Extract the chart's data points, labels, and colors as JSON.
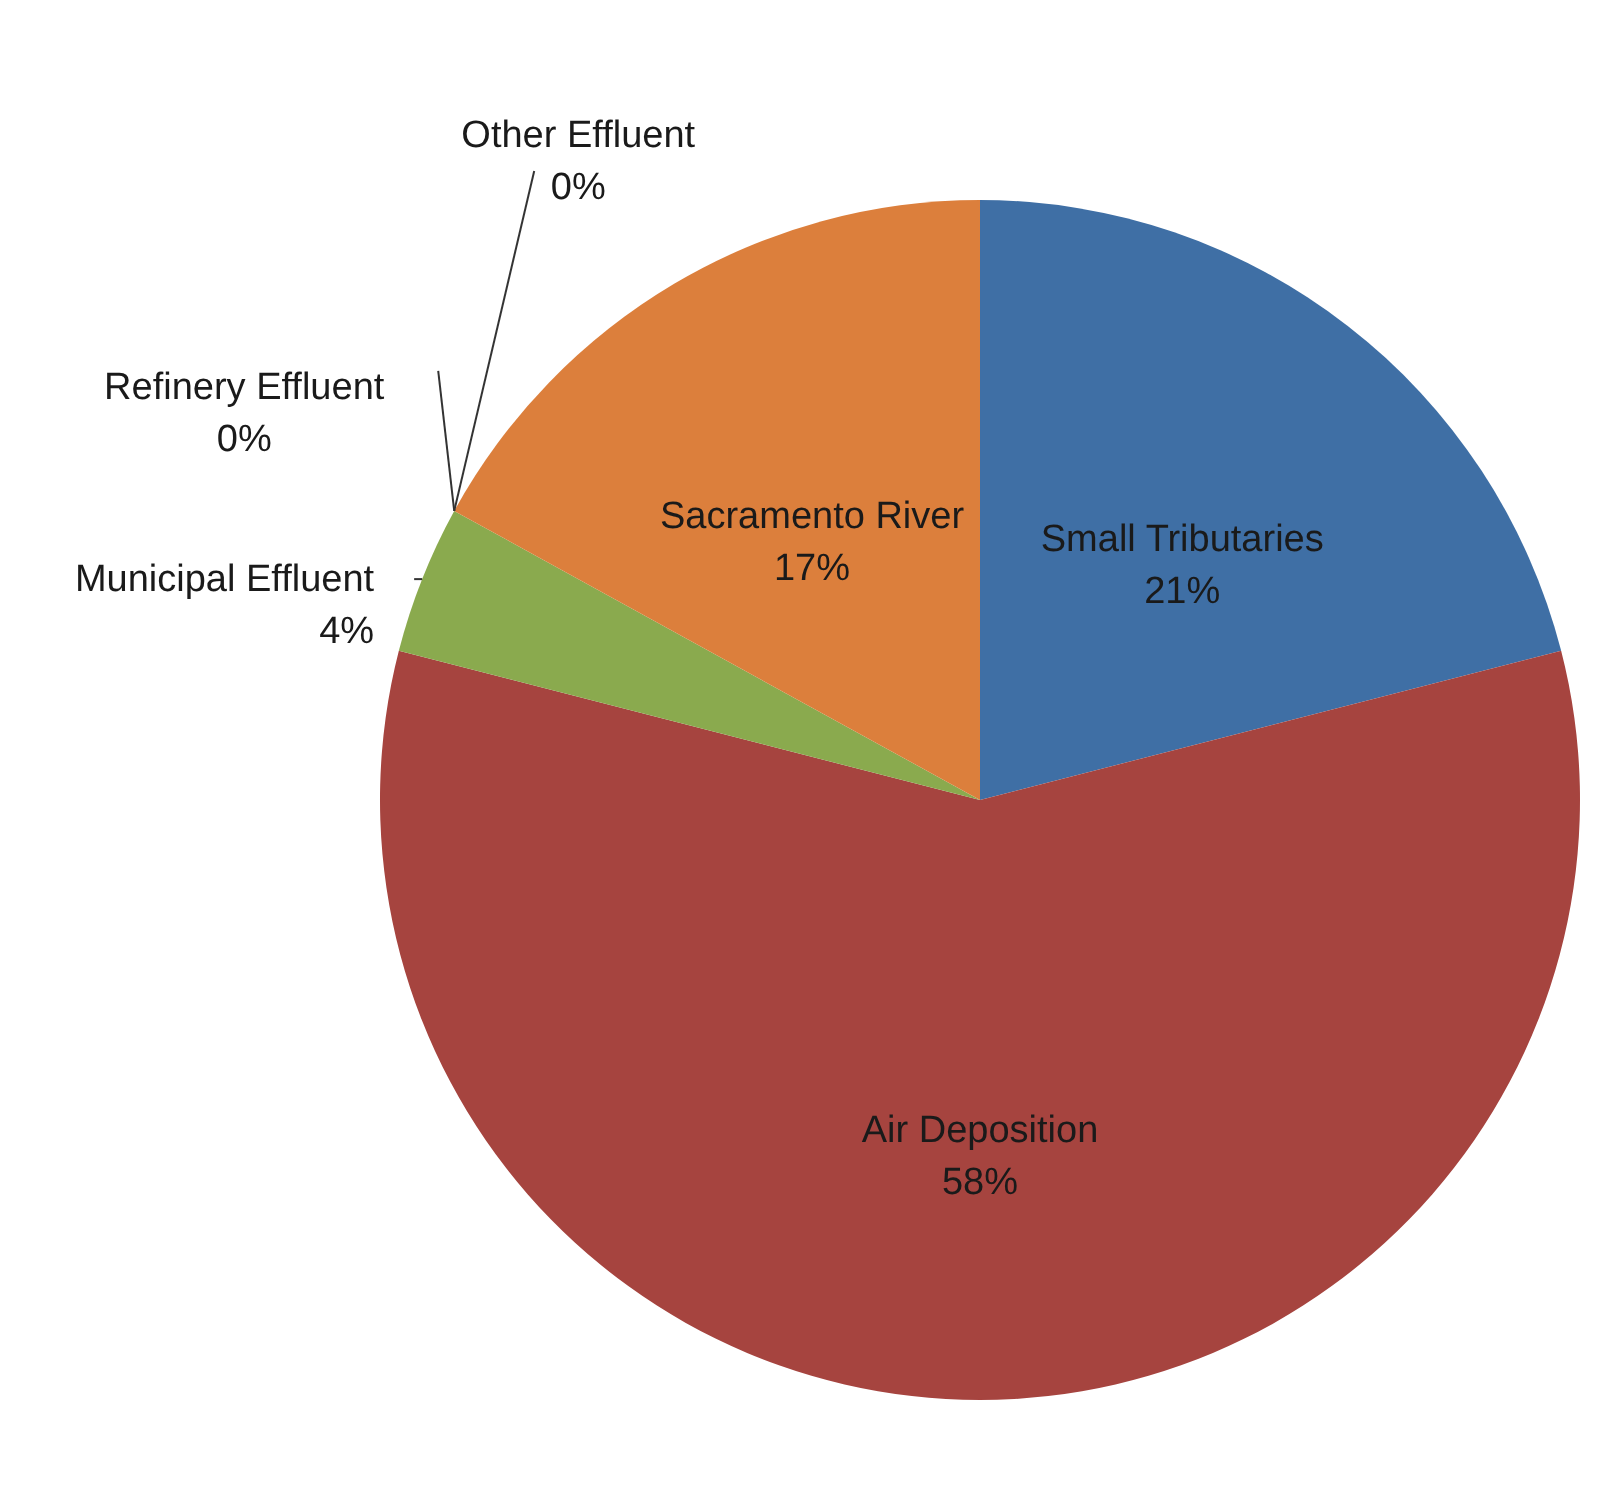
{
  "chart_data": {
    "type": "pie",
    "categories": [
      "Small Tributaries",
      "Air Deposition",
      "Municipal Effluent",
      "Refinery Effluent",
      "Other Effluent",
      "Sacramento River"
    ],
    "values": [
      21,
      58,
      4,
      0,
      0,
      17
    ],
    "value_labels": [
      "21%",
      "58%",
      "4%",
      "0%",
      "0%",
      "17%"
    ],
    "colors": [
      "#3f6fa5",
      "#a6443f",
      "#8aaa4e",
      "#6f8fc0",
      "#7e63a0",
      "#dc7f3c"
    ]
  }
}
